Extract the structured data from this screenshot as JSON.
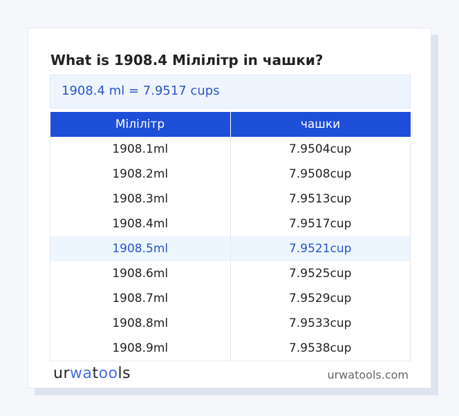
{
  "title": "What is 1908.4 Мілілітр in чашки?",
  "result": "1908.4 ml = 7.9517 cups",
  "table": {
    "headers": [
      "Мілілітр",
      "чашки"
    ],
    "rows": [
      [
        "1908.1ml",
        "7.9504cup"
      ],
      [
        "1908.2ml",
        "7.9508cup"
      ],
      [
        "1908.3ml",
        "7.9513cup"
      ],
      [
        "1908.4ml",
        "7.9517cup"
      ],
      [
        "1908.5ml",
        "7.9521cup"
      ],
      [
        "1908.6ml",
        "7.9525cup"
      ],
      [
        "1908.7ml",
        "7.9529cup"
      ],
      [
        "1908.8ml",
        "7.9533cup"
      ],
      [
        "1908.9ml",
        "7.9538cup"
      ]
    ],
    "highlighted_row": 4
  },
  "footer": {
    "logo": "urwatools",
    "site": "urwatools.com"
  },
  "colors": {
    "accent": "#1d4fd8",
    "highlight_text": "#2a55c8"
  }
}
